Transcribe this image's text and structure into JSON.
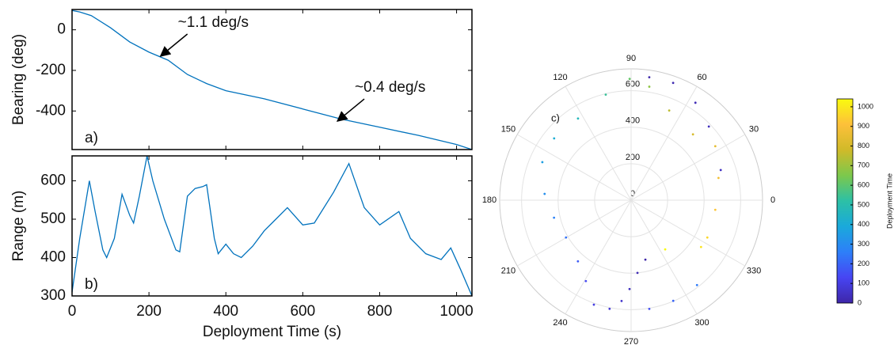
{
  "chart_data": [
    {
      "type": "line",
      "ylabel": "Bearing (deg)",
      "panel_label": "a)",
      "x": [
        0,
        20,
        50,
        100,
        150,
        200,
        250,
        300,
        350,
        400,
        500,
        600,
        700,
        800,
        900,
        1000,
        1040
      ],
      "series": [
        {
          "color": "#0072bd",
          "values": [
            95,
            88,
            70,
            10,
            -60,
            -110,
            -150,
            -220,
            -265,
            -300,
            -340,
            -390,
            -440,
            -480,
            -520,
            -565,
            -590
          ]
        }
      ],
      "xlim": [
        0,
        1040
      ],
      "ylim": [
        -590,
        100
      ],
      "yticks": [
        -400,
        -200,
        0
      ],
      "annotations": [
        {
          "text": "~1.1 deg/s",
          "x": 230,
          "y": -130
        },
        {
          "text": "~0.4 deg/s",
          "x": 690,
          "y": -450
        }
      ]
    },
    {
      "type": "line",
      "ylabel": "Range (m)",
      "xlabel": "Deployment Time (s)",
      "panel_label": "b)",
      "x": [
        0,
        20,
        45,
        60,
        80,
        90,
        110,
        130,
        150,
        160,
        175,
        195,
        210,
        240,
        270,
        280,
        300,
        320,
        340,
        350,
        370,
        380,
        400,
        420,
        440,
        470,
        500,
        520,
        560,
        600,
        630,
        680,
        720,
        760,
        800,
        850,
        880,
        920,
        960,
        985,
        1010,
        1040
      ],
      "series": [
        {
          "color": "#0072bd",
          "values": [
            310,
            450,
            600,
            520,
            420,
            400,
            450,
            565,
            510,
            490,
            560,
            665,
            600,
            500,
            420,
            415,
            560,
            580,
            585,
            590,
            450,
            410,
            435,
            410,
            400,
            430,
            470,
            490,
            530,
            485,
            490,
            570,
            645,
            530,
            485,
            520,
            450,
            410,
            395,
            425,
            370,
            300
          ]
        }
      ],
      "xlim": [
        0,
        1040
      ],
      "ylim": [
        300,
        665
      ],
      "xticks": [
        0,
        200,
        400,
        600,
        800,
        1000
      ],
      "yticks": [
        300,
        400,
        500,
        600
      ]
    },
    {
      "type": "polar_scatter",
      "panel_label": "c)",
      "theta": [
        283.5,
        275,
        269,
        264.6,
        258.8,
        250.4,
        240.8,
        229,
        209.8,
        192.8,
        175.8,
        156.8,
        141.2,
        123,
        103.5,
        90.7,
        80.9,
        67,
        46.8,
        32.7,
        14.3,
        353.5,
        333.9,
        326.2,
        304.7,
        81.6,
        70.3,
        56.6,
        43.5,
        18.6,
        279.5,
        292.7,
        307.8
      ],
      "r": [
        335,
        400,
        487,
        555,
        607,
        608,
        508,
        444,
        411,
        433,
        475,
        529,
        541,
        534,
        595,
        665,
        630,
        534,
        495,
        548,
        494,
        464,
        465,
        461,
        328,
        681,
        683,
        640,
        587,
        518,
        604,
        598,
        589
      ],
      "time": [
        0,
        20,
        40,
        60,
        80,
        100,
        140,
        180,
        230,
        270,
        310,
        360,
        410,
        470,
        540,
        610,
        680,
        750,
        800,
        840,
        880,
        920,
        960,
        990,
        1040,
        5,
        15,
        25,
        35,
        45,
        150,
        200,
        250
      ],
      "rlim": [
        0,
        720
      ],
      "rticks": [
        0,
        200,
        400,
        600
      ],
      "thetaticks": [
        0,
        30,
        60,
        90,
        120,
        150,
        180,
        210,
        240,
        270,
        300,
        330
      ],
      "colorbar": {
        "label": "Deployment Time",
        "clim": [
          0,
          1040
        ],
        "ticks": [
          0,
          100,
          200,
          300,
          400,
          500,
          600,
          700,
          800,
          900,
          1000
        ],
        "colormap": [
          "#3e26a8",
          "#4745f3",
          "#2d7ff9",
          "#1aa9db",
          "#2cc0a6",
          "#7cc84c",
          "#d0ba29",
          "#fdc03a",
          "#f9fb0e"
        ]
      }
    }
  ]
}
